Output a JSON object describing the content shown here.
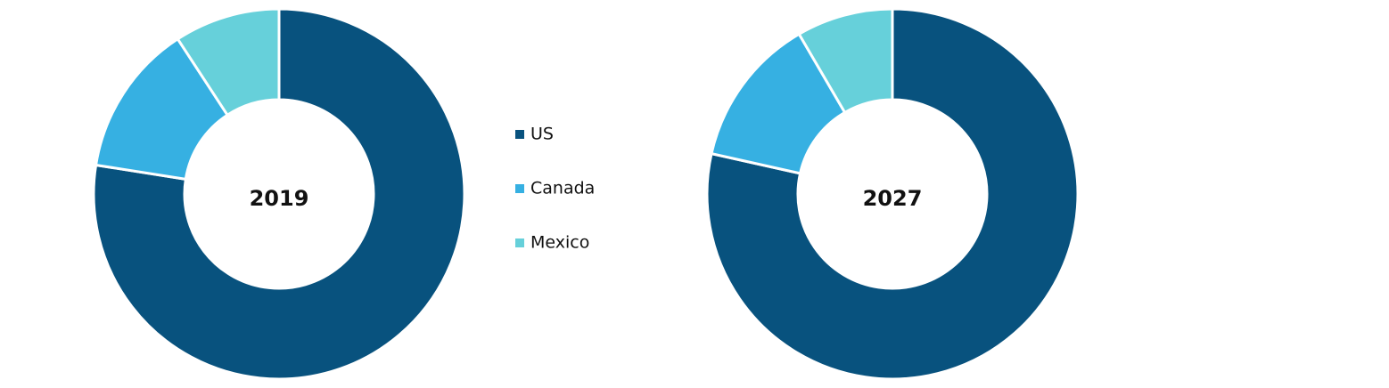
{
  "chart_data": [
    {
      "type": "pie",
      "title": "2019",
      "categories": [
        "US",
        "Canada",
        "Mexico"
      ],
      "values": [
        77.5,
        13.3,
        9.2
      ],
      "colors": [
        "#08527e",
        "#36b0e2",
        "#66d0da"
      ]
    },
    {
      "type": "pie",
      "title": "2027",
      "values": [
        78.5,
        13.1,
        8.4
      ],
      "colors": [
        "#08527e",
        "#36b0e2",
        "#66d0da"
      ]
    }
  ]
}
